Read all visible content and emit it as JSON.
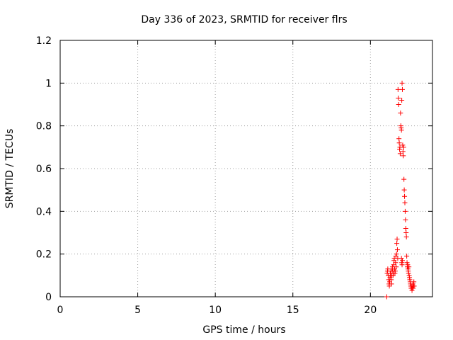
{
  "chart_data": {
    "type": "scatter",
    "title": "Day 336 of 2023, SRMTID for receiver flrs",
    "xlabel": "GPS time / hours",
    "ylabel": "SRMTID / TECUs",
    "xlim": [
      0,
      24
    ],
    "ylim": [
      0,
      1.2
    ],
    "x_ticks": [
      0,
      5,
      10,
      15,
      20
    ],
    "x_tick_labels": [
      "0",
      "5",
      "10",
      "15",
      "20"
    ],
    "y_ticks": [
      0,
      0.2,
      0.4,
      0.6,
      0.8,
      1,
      1.2
    ],
    "y_tick_labels": [
      "0",
      "0.2",
      "0.4",
      "0.6",
      "0.8",
      "1",
      "1.2"
    ],
    "grid": true,
    "marker": "plus",
    "color": "#ff0000",
    "series": [
      {
        "points": [
          [
            21.05,
            0.0
          ],
          [
            21.08,
            0.11
          ],
          [
            21.1,
            0.12
          ],
          [
            21.12,
            0.13
          ],
          [
            21.15,
            0.1
          ],
          [
            21.18,
            0.08
          ],
          [
            21.2,
            0.06
          ],
          [
            21.22,
            0.05
          ],
          [
            21.24,
            0.07
          ],
          [
            21.26,
            0.09
          ],
          [
            21.28,
            0.11
          ],
          [
            21.3,
            0.1
          ],
          [
            21.32,
            0.12
          ],
          [
            21.34,
            0.08
          ],
          [
            21.36,
            0.06
          ],
          [
            21.38,
            0.1
          ],
          [
            21.4,
            0.13
          ],
          [
            21.42,
            0.14
          ],
          [
            21.44,
            0.12
          ],
          [
            21.46,
            0.1
          ],
          [
            21.48,
            0.11
          ],
          [
            21.5,
            0.15
          ],
          [
            21.52,
            0.17
          ],
          [
            21.54,
            0.18
          ],
          [
            21.56,
            0.13
          ],
          [
            21.58,
            0.11
          ],
          [
            21.6,
            0.12
          ],
          [
            21.62,
            0.16
          ],
          [
            21.64,
            0.19
          ],
          [
            21.66,
            0.14
          ],
          [
            21.68,
            0.2
          ],
          [
            21.7,
            0.25
          ],
          [
            21.72,
            0.27
          ],
          [
            21.74,
            0.22
          ],
          [
            21.76,
            0.18
          ],
          [
            21.78,
            0.97
          ],
          [
            21.8,
            0.93
          ],
          [
            21.82,
            0.9
          ],
          [
            21.84,
            0.74
          ],
          [
            21.86,
            0.72
          ],
          [
            21.88,
            0.69
          ],
          [
            21.9,
            0.7
          ],
          [
            21.92,
            0.67
          ],
          [
            21.94,
            0.86
          ],
          [
            21.96,
            0.8
          ],
          [
            21.98,
            0.79
          ],
          [
            22.0,
            0.78
          ],
          [
            22.02,
            0.92
          ],
          [
            22.04,
            1.0
          ],
          [
            22.06,
            0.97
          ],
          [
            22.08,
            0.71
          ],
          [
            22.1,
            0.68
          ],
          [
            22.12,
            0.66
          ],
          [
            22.14,
            0.7
          ],
          [
            22.16,
            0.55
          ],
          [
            22.18,
            0.5
          ],
          [
            22.2,
            0.47
          ],
          [
            22.22,
            0.44
          ],
          [
            22.24,
            0.4
          ],
          [
            22.26,
            0.36
          ],
          [
            22.28,
            0.32
          ],
          [
            22.3,
            0.3
          ],
          [
            22.32,
            0.28
          ],
          [
            22.0,
            0.18
          ],
          [
            22.02,
            0.16
          ],
          [
            22.04,
            0.15
          ],
          [
            22.06,
            0.17
          ],
          [
            22.34,
            0.19
          ],
          [
            22.36,
            0.16
          ],
          [
            22.38,
            0.14
          ],
          [
            22.4,
            0.15
          ],
          [
            22.42,
            0.13
          ],
          [
            22.44,
            0.12
          ],
          [
            22.46,
            0.11
          ],
          [
            22.48,
            0.14
          ],
          [
            22.5,
            0.1
          ],
          [
            22.52,
            0.09
          ],
          [
            22.54,
            0.08
          ],
          [
            22.56,
            0.07
          ],
          [
            22.58,
            0.06
          ],
          [
            22.6,
            0.05
          ],
          [
            22.62,
            0.04
          ],
          [
            22.64,
            0.05
          ],
          [
            22.66,
            0.04
          ],
          [
            22.68,
            0.03
          ],
          [
            22.7,
            0.04
          ],
          [
            22.72,
            0.05
          ],
          [
            22.74,
            0.06
          ],
          [
            22.76,
            0.04
          ],
          [
            22.78,
            0.05
          ],
          [
            22.8,
            0.07
          ],
          [
            22.82,
            0.05
          ]
        ]
      }
    ]
  }
}
